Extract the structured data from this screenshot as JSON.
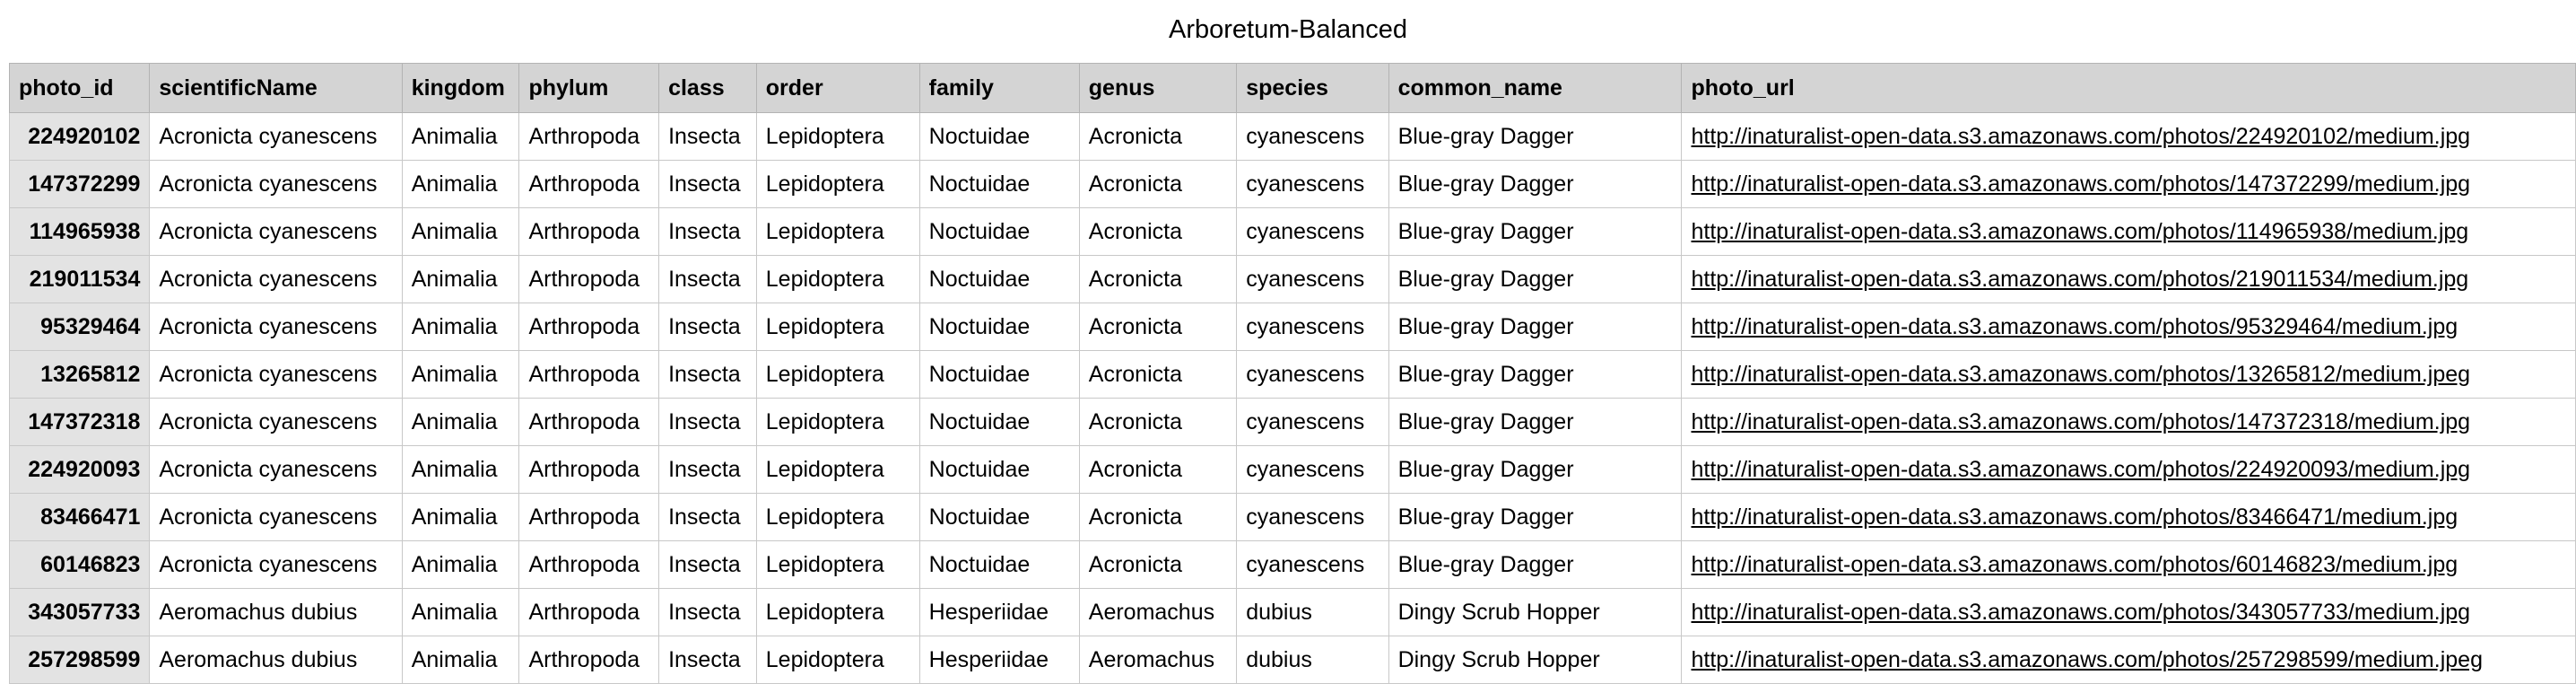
{
  "title": "Arboretum-Balanced",
  "columns": [
    "photo_id",
    "scientificName",
    "kingdom",
    "phylum",
    "class",
    "order",
    "family",
    "genus",
    "species",
    "common_name",
    "photo_url"
  ],
  "rows": [
    [
      "224920102",
      "Acronicta cyanescens",
      "Animalia",
      "Arthropoda",
      "Insecta",
      "Lepidoptera",
      "Noctuidae",
      "Acronicta",
      "cyanescens",
      "Blue-gray Dagger",
      "http://inaturalist-open-data.s3.amazonaws.com/photos/224920102/medium.jpg"
    ],
    [
      "147372299",
      "Acronicta cyanescens",
      "Animalia",
      "Arthropoda",
      "Insecta",
      "Lepidoptera",
      "Noctuidae",
      "Acronicta",
      "cyanescens",
      "Blue-gray Dagger",
      "http://inaturalist-open-data.s3.amazonaws.com/photos/147372299/medium.jpg"
    ],
    [
      "114965938",
      "Acronicta cyanescens",
      "Animalia",
      "Arthropoda",
      "Insecta",
      "Lepidoptera",
      "Noctuidae",
      "Acronicta",
      "cyanescens",
      "Blue-gray Dagger",
      "http://inaturalist-open-data.s3.amazonaws.com/photos/114965938/medium.jpg"
    ],
    [
      "219011534",
      "Acronicta cyanescens",
      "Animalia",
      "Arthropoda",
      "Insecta",
      "Lepidoptera",
      "Noctuidae",
      "Acronicta",
      "cyanescens",
      "Blue-gray Dagger",
      "http://inaturalist-open-data.s3.amazonaws.com/photos/219011534/medium.jpg"
    ],
    [
      "95329464",
      "Acronicta cyanescens",
      "Animalia",
      "Arthropoda",
      "Insecta",
      "Lepidoptera",
      "Noctuidae",
      "Acronicta",
      "cyanescens",
      "Blue-gray Dagger",
      "http://inaturalist-open-data.s3.amazonaws.com/photos/95329464/medium.jpg"
    ],
    [
      "13265812",
      "Acronicta cyanescens",
      "Animalia",
      "Arthropoda",
      "Insecta",
      "Lepidoptera",
      "Noctuidae",
      "Acronicta",
      "cyanescens",
      "Blue-gray Dagger",
      "http://inaturalist-open-data.s3.amazonaws.com/photos/13265812/medium.jpeg"
    ],
    [
      "147372318",
      "Acronicta cyanescens",
      "Animalia",
      "Arthropoda",
      "Insecta",
      "Lepidoptera",
      "Noctuidae",
      "Acronicta",
      "cyanescens",
      "Blue-gray Dagger",
      "http://inaturalist-open-data.s3.amazonaws.com/photos/147372318/medium.jpg"
    ],
    [
      "224920093",
      "Acronicta cyanescens",
      "Animalia",
      "Arthropoda",
      "Insecta",
      "Lepidoptera",
      "Noctuidae",
      "Acronicta",
      "cyanescens",
      "Blue-gray Dagger",
      "http://inaturalist-open-data.s3.amazonaws.com/photos/224920093/medium.jpg"
    ],
    [
      "83466471",
      "Acronicta cyanescens",
      "Animalia",
      "Arthropoda",
      "Insecta",
      "Lepidoptera",
      "Noctuidae",
      "Acronicta",
      "cyanescens",
      "Blue-gray Dagger",
      "http://inaturalist-open-data.s3.amazonaws.com/photos/83466471/medium.jpg"
    ],
    [
      "60146823",
      "Acronicta cyanescens",
      "Animalia",
      "Arthropoda",
      "Insecta",
      "Lepidoptera",
      "Noctuidae",
      "Acronicta",
      "cyanescens",
      "Blue-gray Dagger",
      "http://inaturalist-open-data.s3.amazonaws.com/photos/60146823/medium.jpg"
    ],
    [
      "343057733",
      "Aeromachus dubius",
      "Animalia",
      "Arthropoda",
      "Insecta",
      "Lepidoptera",
      "Hesperiidae",
      "Aeromachus",
      "dubius",
      "Dingy Scrub Hopper",
      "http://inaturalist-open-data.s3.amazonaws.com/photos/343057733/medium.jpg"
    ],
    [
      "257298599",
      "Aeromachus dubius",
      "Animalia",
      "Arthropoda",
      "Insecta",
      "Lepidoptera",
      "Hesperiidae",
      "Aeromachus",
      "dubius",
      "Dingy Scrub Hopper",
      "http://inaturalist-open-data.s3.amazonaws.com/photos/257298599/medium.jpeg"
    ]
  ]
}
